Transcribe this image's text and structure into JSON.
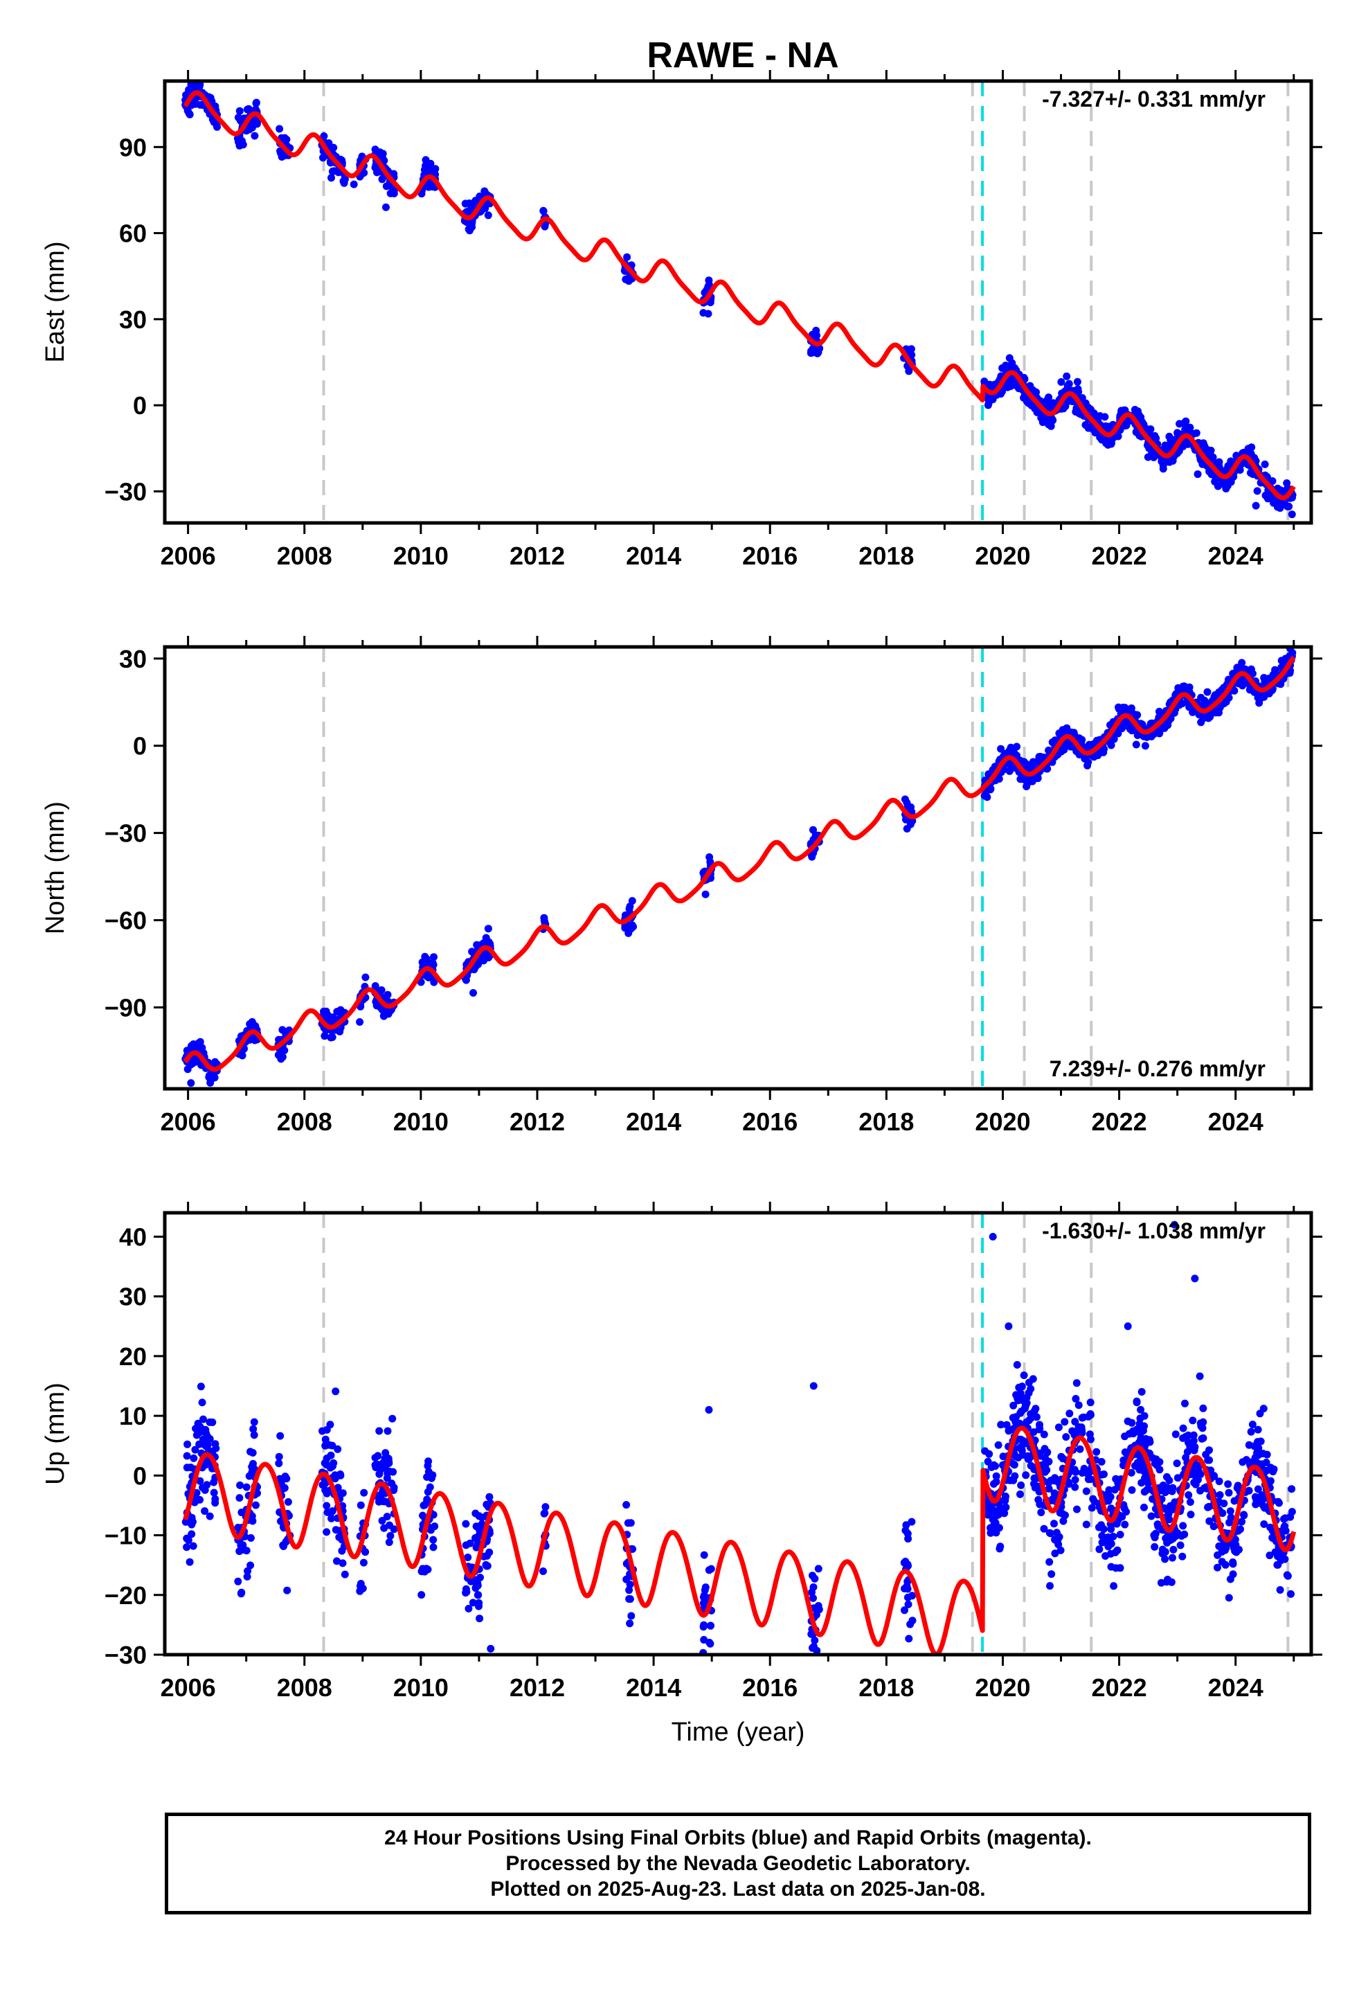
{
  "title": "RAWE - NA",
  "footer": {
    "line1": "24 Hour Positions Using Final Orbits (blue) and Rapid Orbits (magenta).",
    "line2": "Processed by the Nevada Geodetic Laboratory.",
    "line3": "Plotted on 2025-Aug-23. Last data on 2025-Jan-08."
  },
  "colors": {
    "final_orbits": "#0000ff",
    "model": "#ff0000",
    "event_gray": "#c8c8c8",
    "event_cyan": "#00dede"
  },
  "chart_data": [
    {
      "type": "scatter",
      "component": "east",
      "ylabel": "East (mm)",
      "xlabel": "",
      "rate_text": "-7.327+/- 0.331 mm/yr",
      "xlim": [
        2005.6,
        2025.3
      ],
      "ylim": [
        -41,
        113
      ],
      "xticks": [
        2006,
        2008,
        2010,
        2012,
        2014,
        2016,
        2018,
        2020,
        2022,
        2024
      ],
      "yticks": [
        -30,
        0,
        30,
        60,
        90
      ],
      "grid": false,
      "events_gray": [
        2008.33,
        2019.48,
        2020.37,
        2021.52,
        2024.9
      ],
      "events_cyan": [
        2019.65
      ],
      "model": {
        "trend_mm_per_yr": -7.327,
        "annual_amp": 4.5,
        "annual_phase": 0.2,
        "semiannual_amp": 1.0,
        "pre_ref_year": 2006.0,
        "pre_ref_value": 105,
        "break_year": 2019.65,
        "post_ref_year": 2019.65,
        "post_ref_value": 10
      },
      "observations": {
        "scatter": 2.2,
        "segments": [
          [
            2005.95,
            2006.5
          ],
          [
            2006.85,
            2007.2
          ],
          [
            2007.55,
            2007.75
          ],
          [
            2008.3,
            2008.7
          ],
          [
            2008.95,
            2009.05
          ],
          [
            2009.2,
            2009.55
          ],
          [
            2010.0,
            2010.25
          ],
          [
            2010.75,
            2011.2
          ],
          [
            2012.1,
            2012.15
          ],
          [
            2013.5,
            2013.65
          ],
          [
            2014.85,
            2015.0
          ],
          [
            2016.7,
            2016.85
          ],
          [
            2018.3,
            2018.45
          ],
          [
            2019.68,
            2024.98
          ]
        ],
        "outliers": [
          [
            2024.97,
            -38
          ],
          [
            2009.4,
            69
          ],
          [
            2008.85,
            77
          ],
          [
            2023.35,
            -24
          ],
          [
            2024.35,
            -35
          ]
        ]
      }
    },
    {
      "type": "scatter",
      "component": "north",
      "ylabel": "North (mm)",
      "xlabel": "",
      "rate_text": "7.239+/- 0.276 mm/yr",
      "xlim": [
        2005.6,
        2025.3
      ],
      "ylim": [
        -118,
        34
      ],
      "xticks": [
        2006,
        2008,
        2010,
        2012,
        2014,
        2016,
        2018,
        2020,
        2022,
        2024
      ],
      "yticks": [
        -90,
        -60,
        -30,
        0,
        30
      ],
      "grid": false,
      "events_gray": [
        2008.33,
        2019.48,
        2020.37,
        2021.52,
        2024.9
      ],
      "events_cyan": [
        2019.65
      ],
      "model": {
        "trend_mm_per_yr": 7.239,
        "annual_amp": 4.0,
        "annual_phase": 1.2,
        "semiannual_amp": 0.8,
        "pre_ref_year": 2006.0,
        "pre_ref_value": -111,
        "break_year": 2019.65,
        "post_ref_year": 2019.65,
        "post_ref_value": -12
      },
      "observations": {
        "scatter": 2.0,
        "segments": [
          [
            2005.95,
            2006.5
          ],
          [
            2006.85,
            2007.2
          ],
          [
            2007.55,
            2007.75
          ],
          [
            2008.3,
            2008.7
          ],
          [
            2008.95,
            2009.05
          ],
          [
            2009.2,
            2009.55
          ],
          [
            2010.0,
            2010.25
          ],
          [
            2010.75,
            2011.2
          ],
          [
            2012.1,
            2012.15
          ],
          [
            2013.5,
            2013.65
          ],
          [
            2014.85,
            2015.0
          ],
          [
            2016.7,
            2016.85
          ],
          [
            2018.3,
            2018.45
          ],
          [
            2019.68,
            2024.98
          ]
        ],
        "outliers": [
          [
            2010.9,
            -85
          ],
          [
            2008.95,
            -95
          ],
          [
            2006.05,
            -116
          ]
        ]
      }
    },
    {
      "type": "scatter",
      "component": "up",
      "ylabel": "Up (mm)",
      "xlabel": "Time (year)",
      "rate_text": "-1.630+/- 1.038 mm/yr",
      "xlim": [
        2005.6,
        2025.3
      ],
      "ylim": [
        -30,
        44
      ],
      "xticks": [
        2006,
        2008,
        2010,
        2012,
        2014,
        2016,
        2018,
        2020,
        2022,
        2024
      ],
      "yticks": [
        -30,
        -20,
        -10,
        0,
        10,
        20,
        30,
        40
      ],
      "grid": false,
      "events_gray": [
        2008.33,
        2019.48,
        2020.37,
        2021.52,
        2024.9
      ],
      "events_cyan": [
        2019.65
      ],
      "model": {
        "trend_mm_per_yr": -1.63,
        "annual_amp": 6.5,
        "annual_phase": -0.6,
        "semiannual_amp": 0.5,
        "pre_ref_year": 2006.0,
        "pre_ref_value": -2,
        "break_year": 2019.65,
        "post_ref_year": 2019.65,
        "post_ref_value": 3
      },
      "observations": {
        "scatter": 4.5,
        "segments": [
          [
            2005.95,
            2006.5
          ],
          [
            2006.85,
            2007.2
          ],
          [
            2007.55,
            2007.75
          ],
          [
            2008.3,
            2008.7
          ],
          [
            2008.95,
            2009.05
          ],
          [
            2009.2,
            2009.55
          ],
          [
            2010.0,
            2010.25
          ],
          [
            2010.75,
            2011.2
          ],
          [
            2012.1,
            2012.15
          ],
          [
            2013.5,
            2013.65
          ],
          [
            2014.85,
            2015.0
          ],
          [
            2016.7,
            2016.85
          ],
          [
            2018.3,
            2018.45
          ],
          [
            2019.68,
            2024.98
          ]
        ],
        "outliers": [
          [
            2019.83,
            40
          ],
          [
            2022.95,
            42
          ],
          [
            2023.3,
            33
          ],
          [
            2011.2,
            -29
          ],
          [
            2020.1,
            25
          ],
          [
            2022.15,
            25
          ],
          [
            2016.75,
            15
          ],
          [
            2014.95,
            11
          ]
        ]
      }
    }
  ]
}
